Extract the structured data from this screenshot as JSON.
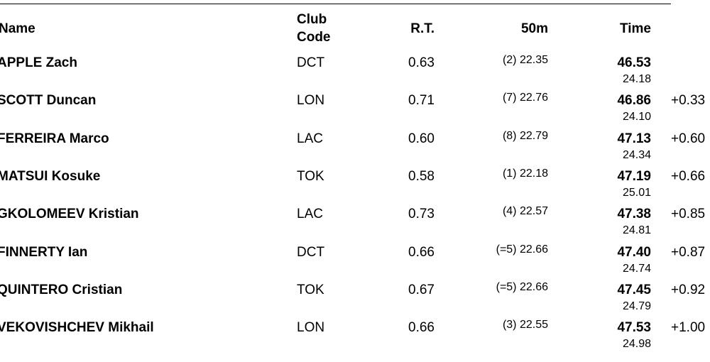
{
  "header": {
    "name": "Name",
    "club": [
      "Club",
      "Code"
    ],
    "rt": "R.T.",
    "fifty": "50m",
    "time": "Time"
  },
  "rows": [
    {
      "name": "APPLE Zach",
      "club": "DCT",
      "rt": "0.63",
      "fifty": "(2) 22.35",
      "time": "46.53",
      "split": "24.18"
    },
    {
      "name": "SCOTT Duncan",
      "club": "LON",
      "rt": "0.71",
      "fifty": "(7) 22.76",
      "time": "46.86",
      "split": "24.10",
      "behind": "+0.33"
    },
    {
      "name": "FERREIRA Marco",
      "club": "LAC",
      "rt": "0.60",
      "fifty": "(8) 22.79",
      "time": "47.13",
      "split": "24.34",
      "behind": "+0.60"
    },
    {
      "name": "MATSUI Kosuke",
      "club": "TOK",
      "rt": "0.58",
      "fifty": "(1) 22.18",
      "time": "47.19",
      "split": "25.01",
      "behind": "+0.66"
    },
    {
      "name": "GKOLOMEEV Kristian",
      "club": "LAC",
      "rt": "0.73",
      "fifty": "(4) 22.57",
      "time": "47.38",
      "split": "24.81",
      "behind": "+0.85"
    },
    {
      "name": "FINNERTY Ian",
      "club": "DCT",
      "rt": "0.66",
      "fifty": "(=5) 22.66",
      "time": "47.40",
      "split": "24.74",
      "behind": "+0.87"
    },
    {
      "name": "QUINTERO Cristian",
      "club": "TOK",
      "rt": "0.67",
      "fifty": "(=5) 22.66",
      "time": "47.45",
      "split": "24.79",
      "behind": "+0.92"
    },
    {
      "name": "VEKOVISHCHEV Mikhail",
      "club": "LON",
      "rt": "0.66",
      "fifty": "(3) 22.55",
      "time": "47.53",
      "split": "24.98",
      "behind": "+1.00"
    }
  ]
}
